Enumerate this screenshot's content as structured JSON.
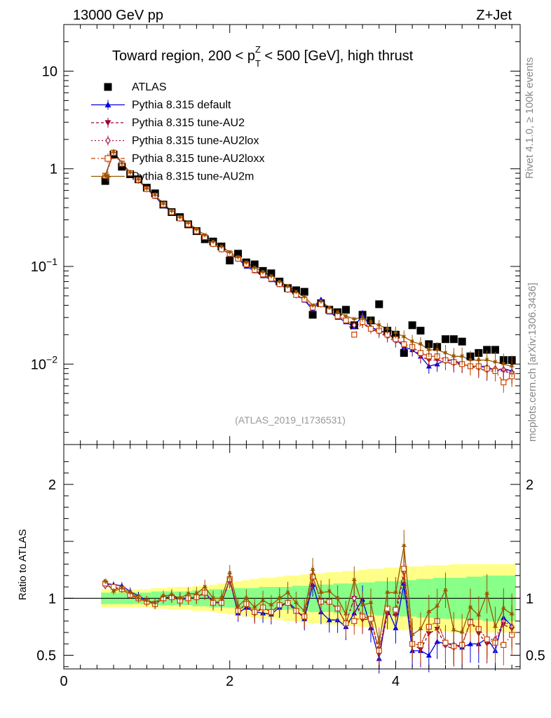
{
  "header": {
    "left": "13000 GeV pp",
    "right": "Z+Jet"
  },
  "title": {
    "prefix": "Toward region, 200 < p",
    "sup": "Z",
    "sub": "T",
    "suffix": " < 500 [GeV], high thrust"
  },
  "side_labels": {
    "rivet": "Rivet 4.1.0, ≥ 100k events",
    "mcplots": "mcplots.cern.ch [arXiv:1306.3436]"
  },
  "analysis_ref": "(ATLAS_2019_I1736531)",
  "ratio_ylabel": "Ratio to ATLAS",
  "colors": {
    "atlas": "#000000",
    "default": "#0000dd",
    "au2": "#990033",
    "au2lox": "#aa1144",
    "au2loxx": "#cc4400",
    "au2m": "#995500",
    "band_outer": "#ffff88",
    "band_inner": "#88ff88"
  },
  "chart_data": [
    {
      "type": "scatter",
      "panel": "main",
      "yscale": "log",
      "xlim": [
        0,
        5.5
      ],
      "ylim": [
        0.0015,
        30
      ],
      "x_ticks": [
        0,
        2,
        4
      ],
      "y_ticks": [
        {
          "value": 10,
          "label": "10"
        },
        {
          "value": 1,
          "label": "1"
        },
        {
          "value": 0.1,
          "label": "10^-1"
        },
        {
          "value": 0.01,
          "label": "10^-2"
        }
      ],
      "x": [
        0.5,
        0.6,
        0.7,
        0.8,
        0.9,
        1.0,
        1.1,
        1.2,
        1.3,
        1.4,
        1.5,
        1.6,
        1.7,
        1.8,
        1.9,
        2.0,
        2.1,
        2.2,
        2.3,
        2.4,
        2.5,
        2.6,
        2.7,
        2.8,
        2.9,
        3.0,
        3.1,
        3.2,
        3.3,
        3.4,
        3.5,
        3.6,
        3.7,
        3.8,
        3.9,
        4.0,
        4.1,
        4.2,
        4.3,
        4.4,
        4.5,
        4.6,
        4.7,
        4.8,
        4.9,
        5.0,
        5.1,
        5.2,
        5.3,
        5.4
      ],
      "series": [
        {
          "name": "ATLAS",
          "key": "atlas",
          "marker": "square",
          "values": [
            0.75,
            1.4,
            1.05,
            0.88,
            0.78,
            0.64,
            0.56,
            0.43,
            0.36,
            0.32,
            0.27,
            0.23,
            0.19,
            0.18,
            0.16,
            0.115,
            0.135,
            0.11,
            0.105,
            0.09,
            0.085,
            0.07,
            0.06,
            0.057,
            0.055,
            0.032,
            0.042,
            0.036,
            0.034,
            0.036,
            0.025,
            0.032,
            0.028,
            0.041,
            0.022,
            0.02,
            0.013,
            0.025,
            0.022,
            0.016,
            0.015,
            0.018,
            0.018,
            0.017,
            0.012,
            0.013,
            0.014,
            0.014,
            0.011,
            0.011
          ]
        },
        {
          "name": "Pythia 8.315 default",
          "key": "default",
          "marker": "triangle-up",
          "values": [
            0.85,
            1.5,
            1.15,
            0.92,
            0.78,
            0.62,
            0.52,
            0.42,
            0.36,
            0.31,
            0.27,
            0.23,
            0.2,
            0.17,
            0.15,
            0.135,
            0.12,
            0.1,
            0.09,
            0.08,
            0.073,
            0.065,
            0.06,
            0.052,
            0.045,
            0.036,
            0.046,
            0.034,
            0.03,
            0.027,
            0.024,
            0.032,
            0.024,
            0.022,
            0.021,
            0.018,
            0.015,
            0.014,
            0.012,
            0.0095,
            0.01,
            0.011,
            0.011,
            0.01,
            0.0095,
            0.0095,
            0.0095,
            0.0085,
            0.009,
            0.0085
          ]
        },
        {
          "name": "Pythia 8.315 tune-AU2",
          "key": "au2",
          "marker": "triangle-down",
          "values": [
            0.84,
            1.45,
            1.12,
            0.9,
            0.76,
            0.62,
            0.53,
            0.43,
            0.36,
            0.31,
            0.27,
            0.23,
            0.2,
            0.17,
            0.15,
            0.135,
            0.12,
            0.105,
            0.09,
            0.083,
            0.075,
            0.066,
            0.058,
            0.05,
            0.046,
            0.038,
            0.041,
            0.035,
            0.031,
            0.028,
            0.025,
            0.026,
            0.023,
            0.021,
            0.019,
            0.017,
            0.016,
            0.015,
            0.012,
            0.011,
            0.011,
            0.0105,
            0.01,
            0.01,
            0.0095,
            0.009,
            0.0085,
            0.0085,
            0.0085,
            0.008
          ]
        },
        {
          "name": "Pythia 8.315 tune-AU2lox",
          "key": "au2lox",
          "marker": "diamond-open",
          "values": [
            0.84,
            1.45,
            1.12,
            0.9,
            0.76,
            0.62,
            0.53,
            0.43,
            0.36,
            0.31,
            0.27,
            0.23,
            0.2,
            0.17,
            0.15,
            0.135,
            0.12,
            0.105,
            0.092,
            0.083,
            0.075,
            0.066,
            0.058,
            0.051,
            0.046,
            0.038,
            0.041,
            0.035,
            0.031,
            0.028,
            0.025,
            0.027,
            0.023,
            0.022,
            0.02,
            0.018,
            0.016,
            0.015,
            0.013,
            0.012,
            0.012,
            0.011,
            0.0105,
            0.01,
            0.0095,
            0.0095,
            0.009,
            0.009,
            0.0088,
            0.0082
          ]
        },
        {
          "name": "Pythia 8.315 tune-AU2loxx",
          "key": "au2loxx",
          "marker": "square-open",
          "values": [
            0.85,
            1.46,
            1.13,
            0.9,
            0.77,
            0.62,
            0.53,
            0.43,
            0.36,
            0.31,
            0.27,
            0.23,
            0.2,
            0.17,
            0.15,
            0.135,
            0.12,
            0.105,
            0.092,
            0.083,
            0.075,
            0.066,
            0.058,
            0.051,
            0.046,
            0.038,
            0.041,
            0.035,
            0.031,
            0.028,
            0.02,
            0.027,
            0.023,
            0.022,
            0.02,
            0.018,
            0.016,
            0.015,
            0.013,
            0.012,
            0.012,
            0.011,
            0.0105,
            0.01,
            0.0095,
            0.0095,
            0.009,
            0.0085,
            0.0065,
            0.0075
          ]
        },
        {
          "name": "Pythia 8.315 tune-AU2m",
          "key": "au2m",
          "marker": "star",
          "values": [
            0.86,
            1.48,
            1.14,
            0.92,
            0.78,
            0.63,
            0.54,
            0.44,
            0.37,
            0.32,
            0.28,
            0.24,
            0.21,
            0.18,
            0.16,
            0.14,
            0.125,
            0.11,
            0.097,
            0.088,
            0.08,
            0.07,
            0.063,
            0.055,
            0.049,
            0.04,
            0.044,
            0.038,
            0.034,
            0.031,
            0.029,
            0.03,
            0.027,
            0.025,
            0.023,
            0.021,
            0.019,
            0.017,
            0.016,
            0.014,
            0.014,
            0.013,
            0.012,
            0.012,
            0.011,
            0.011,
            0.011,
            0.0105,
            0.01,
            0.0095
          ]
        }
      ]
    },
    {
      "type": "line",
      "panel": "ratio",
      "xlim": [
        0,
        5.5
      ],
      "ylim": [
        0.38,
        2.35
      ],
      "x_ticks": [
        0,
        2,
        4
      ],
      "y_ticks": [
        {
          "value": 0.5,
          "label": "0.5"
        },
        {
          "value": 1,
          "label": "1"
        },
        {
          "value": 2,
          "label": "2"
        }
      ],
      "ylabel": "Ratio to ATLAS",
      "reference_line": 1,
      "x": [
        0.5,
        0.6,
        0.7,
        0.8,
        0.9,
        1.0,
        1.1,
        1.2,
        1.3,
        1.4,
        1.5,
        1.6,
        1.7,
        1.8,
        1.9,
        2.0,
        2.1,
        2.2,
        2.3,
        2.4,
        2.5,
        2.6,
        2.7,
        2.8,
        2.9,
        3.0,
        3.1,
        3.2,
        3.3,
        3.4,
        3.5,
        3.6,
        3.7,
        3.8,
        3.9,
        4.0,
        4.1,
        4.2,
        4.3,
        4.4,
        4.5,
        4.6,
        4.7,
        4.8,
        4.9,
        5.0,
        5.1,
        5.2,
        5.3,
        5.4
      ],
      "band_inner_half": [
        0.05,
        0.05,
        0.05,
        0.05,
        0.05,
        0.05,
        0.06,
        0.06,
        0.06,
        0.06,
        0.06,
        0.07,
        0.07,
        0.08,
        0.08,
        0.08,
        0.09,
        0.09,
        0.09,
        0.1,
        0.1,
        0.1,
        0.1,
        0.11,
        0.11,
        0.12,
        0.12,
        0.12,
        0.13,
        0.13,
        0.13,
        0.14,
        0.14,
        0.15,
        0.15,
        0.15,
        0.16,
        0.16,
        0.17,
        0.17,
        0.18,
        0.18,
        0.18,
        0.18,
        0.19,
        0.19,
        0.2,
        0.2,
        0.2,
        0.2
      ],
      "band_outer_half": [
        0.08,
        0.08,
        0.08,
        0.08,
        0.08,
        0.08,
        0.09,
        0.09,
        0.1,
        0.1,
        0.1,
        0.11,
        0.11,
        0.12,
        0.13,
        0.14,
        0.15,
        0.16,
        0.17,
        0.18,
        0.18,
        0.19,
        0.2,
        0.2,
        0.21,
        0.22,
        0.22,
        0.23,
        0.23,
        0.24,
        0.24,
        0.25,
        0.26,
        0.26,
        0.27,
        0.27,
        0.28,
        0.28,
        0.28,
        0.29,
        0.29,
        0.29,
        0.3,
        0.3,
        0.3,
        0.3,
        0.3,
        0.3,
        0.3,
        0.3
      ],
      "series": [
        {
          "name": "Pythia 8.315 default",
          "key": "default",
          "marker": "triangle-up",
          "values": [
            1.13,
            1.12,
            1.11,
            1.06,
            1.02,
            0.98,
            0.95,
            1.0,
            1.02,
            1.0,
            1.0,
            1.01,
            1.05,
            0.97,
            0.96,
            1.16,
            0.87,
            0.92,
            0.88,
            0.87,
            0.86,
            0.92,
            0.97,
            0.9,
            0.82,
            1.12,
            0.88,
            0.81,
            0.81,
            0.75,
            0.87,
            0.99,
            0.74,
            0.47,
            0.91,
            0.74,
            1.13,
            0.54,
            0.54,
            0.5,
            0.62,
            0.6,
            0.6,
            0.57,
            0.6,
            0.6,
            0.65,
            0.54,
            0.83,
            0.76
          ]
        },
        {
          "name": "Pythia 8.315 tune-AU2",
          "key": "au2",
          "marker": "triangle-down",
          "values": [
            1.11,
            1.09,
            1.08,
            1.03,
            1.0,
            0.97,
            0.95,
            1.0,
            1.01,
            0.98,
            1.0,
            1.01,
            1.05,
            0.96,
            0.96,
            1.17,
            0.89,
            0.95,
            0.86,
            0.92,
            0.88,
            0.94,
            0.96,
            0.88,
            0.84,
            1.19,
            0.97,
            0.96,
            0.91,
            0.78,
            1.0,
            0.81,
            0.82,
            0.51,
            0.86,
            0.85,
            1.22,
            0.6,
            0.55,
            0.69,
            0.73,
            0.58,
            0.56,
            0.59,
            0.8,
            0.69,
            0.6,
            0.61,
            0.77,
            0.73
          ]
        },
        {
          "name": "Pythia 8.315 tune-AU2lox",
          "key": "au2lox",
          "marker": "diamond-open",
          "values": [
            1.11,
            1.09,
            1.08,
            1.03,
            1.0,
            0.97,
            0.95,
            1.0,
            1.01,
            0.98,
            1.0,
            1.01,
            1.05,
            0.96,
            0.96,
            1.17,
            0.89,
            0.95,
            0.88,
            0.92,
            0.88,
            0.94,
            0.96,
            0.89,
            0.84,
            1.19,
            0.97,
            0.97,
            0.91,
            0.78,
            1.0,
            0.84,
            0.82,
            0.54,
            0.91,
            0.9,
            1.23,
            0.6,
            0.59,
            0.75,
            0.8,
            0.61,
            0.58,
            0.59,
            0.79,
            0.73,
            0.64,
            0.64,
            0.8,
            0.75
          ]
        },
        {
          "name": "Pythia 8.315 tune-AU2loxx",
          "key": "au2loxx",
          "marker": "square-open",
          "values": [
            1.13,
            1.1,
            1.08,
            1.03,
            1.0,
            0.97,
            0.95,
            1.0,
            1.01,
            0.98,
            1.0,
            1.01,
            1.05,
            0.96,
            0.96,
            1.17,
            0.89,
            0.95,
            0.88,
            0.92,
            0.88,
            0.94,
            0.96,
            0.89,
            0.84,
            1.19,
            0.97,
            0.97,
            0.91,
            0.78,
            0.8,
            0.84,
            0.82,
            0.54,
            0.91,
            0.9,
            1.26,
            0.6,
            0.59,
            0.75,
            0.8,
            0.61,
            0.58,
            0.59,
            0.79,
            0.73,
            0.64,
            0.61,
            0.59,
            0.68
          ]
        },
        {
          "name": "Pythia 8.315 tune-AU2m",
          "key": "au2m",
          "marker": "star",
          "values": [
            1.15,
            1.06,
            1.09,
            1.05,
            1.0,
            0.98,
            0.96,
            1.02,
            1.03,
            1.0,
            1.04,
            1.04,
            1.1,
            1.0,
            1.0,
            1.22,
            0.93,
            1.0,
            0.92,
            0.98,
            0.94,
            1.0,
            1.05,
            0.96,
            0.89,
            1.25,
            1.05,
            1.06,
            1.0,
            0.86,
            1.16,
            0.94,
            0.96,
            0.61,
            1.05,
            1.05,
            1.46,
            0.68,
            0.73,
            0.88,
            0.93,
            1.07,
            0.72,
            0.7,
            0.92,
            0.85,
            1.04,
            0.75,
            0.91,
            0.86
          ]
        }
      ]
    }
  ]
}
